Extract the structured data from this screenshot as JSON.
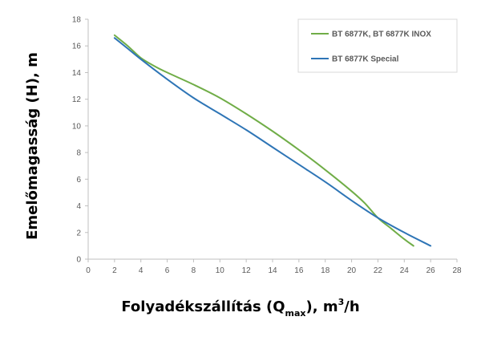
{
  "chart_data": {
    "type": "line",
    "xlabel_main": "Folyadékszállítás (Q",
    "xlabel_sub": "max",
    "xlabel_tail": "), m",
    "xlabel_sup": "3",
    "xlabel_end": "/h",
    "ylabel": "Emelőmagasság (H), m",
    "xlim": [
      0,
      28
    ],
    "ylim": [
      0,
      18
    ],
    "xticks": [
      0,
      2,
      4,
      6,
      8,
      10,
      12,
      14,
      16,
      18,
      20,
      22,
      24,
      26,
      28
    ],
    "yticks": [
      0,
      2,
      4,
      6,
      8,
      10,
      12,
      14,
      16,
      18
    ],
    "grid": false,
    "legend_position": "top-right",
    "series": [
      {
        "name": "BT 6877K, BT 6877K INOX",
        "color": "#70AD47",
        "x": [
          2,
          3,
          4,
          5,
          6,
          8,
          10,
          12,
          14,
          16,
          18,
          20,
          21,
          22,
          23,
          24,
          24.7
        ],
        "y": [
          16.8,
          16.0,
          15.1,
          14.5,
          14.0,
          13.1,
          12.1,
          10.9,
          9.6,
          8.2,
          6.7,
          5.1,
          4.2,
          3.1,
          2.3,
          1.5,
          1.0
        ]
      },
      {
        "name": "BT 6877K Special",
        "color": "#2E75B6",
        "x": [
          2,
          3,
          4,
          6,
          8,
          10,
          12,
          14,
          16,
          18,
          20,
          22,
          24,
          26
        ],
        "y": [
          16.6,
          15.8,
          15.0,
          13.5,
          12.1,
          10.9,
          9.7,
          8.4,
          7.1,
          5.8,
          4.4,
          3.1,
          2.0,
          1.0
        ]
      }
    ]
  }
}
